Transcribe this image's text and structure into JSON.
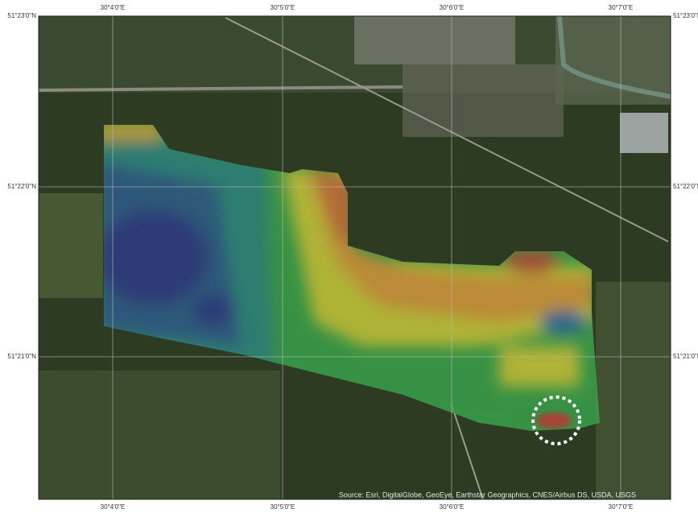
{
  "map": {
    "longitudes": [
      "30°4'0\"E",
      "30°5'0\"E",
      "30°6'0\"E",
      "30°7'0\"E"
    ],
    "latitudes": [
      "51°23'0\"N",
      "51°22'0\"N",
      "51°21'0\"N"
    ],
    "attribution": "Source: Esri, DigitalGlobe, GeoEye, Earthstar Geographics, CNES/Airbus DS, USDA, USGS"
  }
}
